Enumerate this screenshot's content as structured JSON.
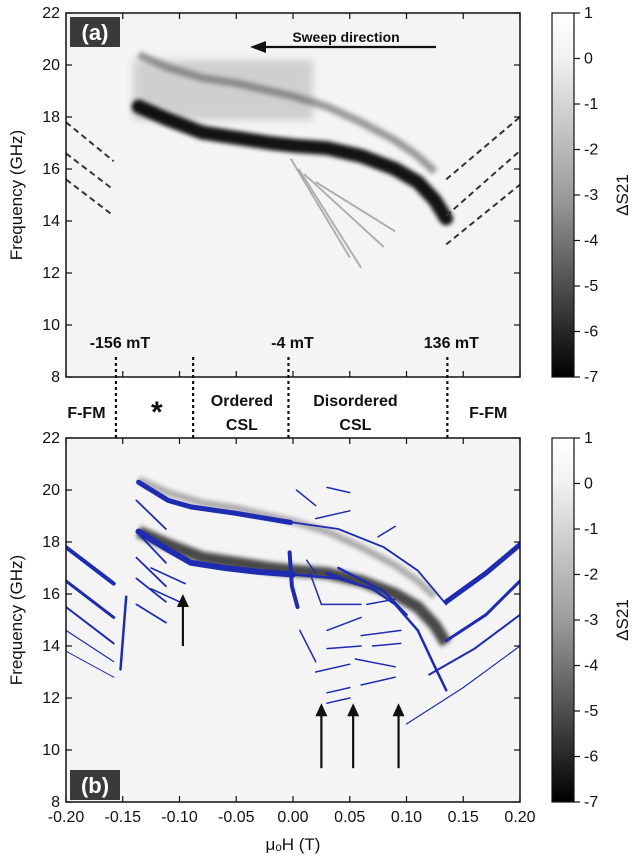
{
  "panels": {
    "a": {
      "label": "(a)",
      "sweep_label": "Sweep direction"
    },
    "b": {
      "label": "(b)"
    }
  },
  "ylabel": "Frequency (GHz)",
  "xlabel": "μₒH (T)",
  "colorbar_label": "ΔS21",
  "xticks": [
    "-0.20",
    "-0.15",
    "-0.10",
    "-0.05",
    "0.00",
    "0.05",
    "0.10",
    "0.15",
    "0.20"
  ],
  "yticks": [
    "8",
    "10",
    "12",
    "14",
    "16",
    "18",
    "20",
    "22"
  ],
  "cbar_ticks": [
    "1",
    "0",
    "-1",
    "-2",
    "-3",
    "-4",
    "-5",
    "-6",
    "-7"
  ],
  "field_markers": [
    {
      "text": "-156 mT",
      "x": -0.156
    },
    {
      "text": "-4 mT",
      "x": -0.004
    },
    {
      "text": "136 mT",
      "x": 0.136
    }
  ],
  "phase_labels": [
    {
      "text": "F-FM",
      "x": -0.182
    },
    {
      "text": "*",
      "x": -0.12
    },
    {
      "text": "Ordered",
      "x": -0.045
    },
    {
      "text": "CSL",
      "x": -0.045
    },
    {
      "text": "Disordered",
      "x": 0.055
    },
    {
      "text": "CSL",
      "x": 0.055
    },
    {
      "text": "F-FM",
      "x": 0.172
    }
  ],
  "phase_boundaries": [
    -0.156,
    -0.088,
    -0.004,
    0.136
  ],
  "colors": {
    "sim": "#1f2bb0",
    "frame": "#111111"
  },
  "chart_data": {
    "type": "heatmap",
    "xlim": [
      -0.2,
      0.2
    ],
    "ylim": [
      8,
      22
    ],
    "colorbar_range": [
      -7,
      1
    ],
    "x_step": 0.05,
    "arrows_b": [
      -0.097,
      0.025,
      0.053,
      0.093
    ],
    "sweep_direction": "decreasing field",
    "main_mode_dark": [
      [
        -0.136,
        18.4
      ],
      [
        -0.11,
        17.9
      ],
      [
        -0.08,
        17.4
      ],
      [
        -0.05,
        17.2
      ],
      [
        -0.02,
        17.0
      ],
      [
        0.0,
        16.9
      ],
      [
        0.03,
        16.8
      ],
      [
        0.06,
        16.5
      ],
      [
        0.09,
        16.0
      ],
      [
        0.11,
        15.5
      ],
      [
        0.125,
        14.8
      ],
      [
        0.135,
        14.1
      ]
    ],
    "upper_mode": [
      [
        -0.136,
        20.4
      ],
      [
        -0.11,
        19.9
      ],
      [
        -0.08,
        19.5
      ],
      [
        -0.05,
        19.3
      ],
      [
        -0.02,
        19.0
      ],
      [
        0.0,
        18.8
      ],
      [
        0.03,
        18.4
      ],
      [
        0.06,
        17.8
      ],
      [
        0.09,
        17.1
      ],
      [
        0.11,
        16.5
      ],
      [
        0.125,
        15.9
      ]
    ],
    "ffm_right": [
      [
        [
          0.135,
          15.6
        ],
        [
          0.2,
          18.0
        ]
      ],
      [
        [
          0.135,
          14.2
        ],
        [
          0.2,
          16.7
        ]
      ],
      [
        [
          0.135,
          13.1
        ],
        [
          0.2,
          15.4
        ]
      ]
    ],
    "ffm_left": [
      [
        [
          -0.2,
          17.8
        ],
        [
          -0.158,
          16.3
        ]
      ],
      [
        [
          -0.2,
          16.6
        ],
        [
          -0.158,
          15.2
        ]
      ],
      [
        [
          -0.2,
          15.6
        ],
        [
          -0.158,
          14.2
        ]
      ]
    ]
  }
}
